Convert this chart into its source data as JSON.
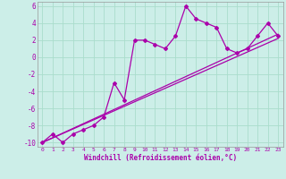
{
  "xlabel": "Windchill (Refroidissement éolien,°C)",
  "bg_color": "#cceee8",
  "line_color": "#aa00aa",
  "grid_color": "#aaddcc",
  "xlim": [
    -0.5,
    23.5
  ],
  "ylim": [
    -10.5,
    6.5
  ],
  "xticks": [
    0,
    1,
    2,
    3,
    4,
    5,
    6,
    7,
    8,
    9,
    10,
    11,
    12,
    13,
    14,
    15,
    16,
    17,
    18,
    19,
    20,
    21,
    22,
    23
  ],
  "yticks": [
    -10,
    -8,
    -6,
    -4,
    -2,
    0,
    2,
    4,
    6
  ],
  "jagged_x": [
    0,
    1,
    2,
    3,
    4,
    5,
    6,
    7,
    8,
    9,
    10,
    11,
    12,
    13,
    14,
    15,
    16,
    17,
    18,
    19,
    20,
    21,
    22,
    23
  ],
  "jagged_y": [
    -10.0,
    -9.0,
    -10.0,
    -9.0,
    -8.5,
    -8.0,
    -7.0,
    -3.0,
    -5.0,
    2.0,
    2.0,
    1.5,
    1.0,
    2.5,
    6.0,
    4.5,
    4.0,
    3.5,
    1.0,
    0.5,
    1.0,
    2.5,
    4.0,
    2.5
  ],
  "line1_x": [
    0,
    23
  ],
  "line1_y": [
    -10,
    2.7
  ],
  "line2_x": [
    0,
    23
  ],
  "line2_y": [
    -10,
    2.2
  ],
  "xlabel_fontsize": 5.5,
  "ytick_fontsize": 5.5,
  "xtick_fontsize": 4.5
}
